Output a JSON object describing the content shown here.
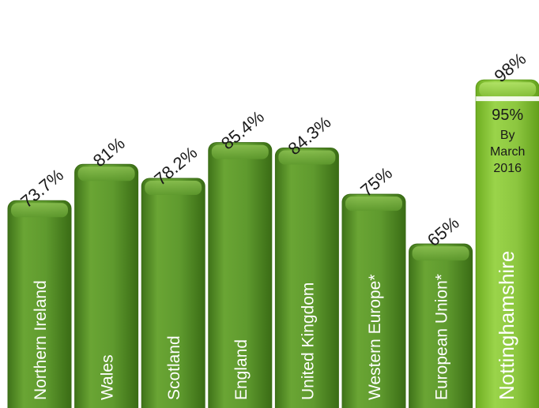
{
  "chart_data": {
    "type": "bar",
    "title": "",
    "xlabel": "",
    "ylabel": "",
    "ylim": [
      0,
      100
    ],
    "categories": [
      "Northern Ireland",
      "Wales",
      "Scotland",
      "England",
      "United Kingdom",
      "Western Europe*",
      "European Union*",
      "Nottinghamshire"
    ],
    "values": [
      73.7,
      81,
      78.2,
      85.4,
      84.3,
      75,
      65,
      98
    ],
    "value_labels": [
      "73.7%",
      "81%",
      "78.2%",
      "85.4%",
      "84.3%",
      "75%",
      "65%",
      "98%"
    ],
    "highlight_index": 7,
    "highlight_inner": {
      "value": 95,
      "value_label": "95%",
      "note_lines": [
        "By",
        "March",
        "2016"
      ]
    },
    "colors": {
      "bar": "#5f9a2e",
      "bar_light": "#78b03c",
      "bar_dark": "#3f7319",
      "highlight": "#8cc63f",
      "highlight_light": "#a8dc5a",
      "highlight_dark": "#5f9a1e"
    }
  }
}
